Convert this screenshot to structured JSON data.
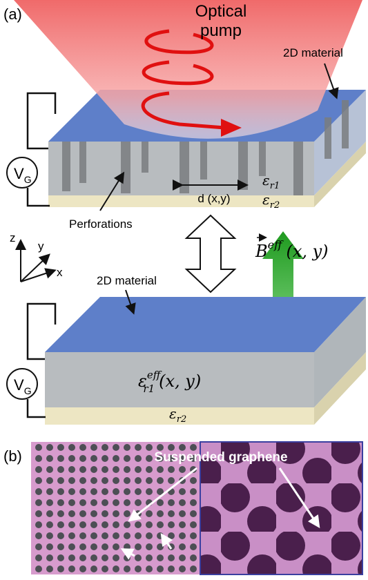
{
  "panel_a": {
    "label": "(a)",
    "optical_pump": [
      "Optical",
      "pump"
    ],
    "top_slab": {
      "material": "2D material",
      "gate": {
        "symbol": "V",
        "sub": "G"
      },
      "eps_r1": {
        "symbol": "ε",
        "sub": "r1"
      },
      "eps_r2": {
        "symbol": "ε",
        "sub": "r2"
      },
      "spacing": "d (x,y)",
      "perforations": "Perforations"
    },
    "axes": {
      "z": "z",
      "y": "y",
      "x": "x"
    },
    "field": {
      "symbol": "B",
      "sup": "eff",
      "args": "(x, y)"
    },
    "bottom_slab": {
      "material": "2D material",
      "gate": {
        "symbol": "V",
        "sub": "G"
      },
      "eps_r1": {
        "symbol": "ε",
        "sub": "r1",
        "sup": "eff",
        "args": "(x, y)"
      },
      "eps_r2": {
        "symbol": "ε",
        "sub": "r2"
      }
    }
  },
  "panel_b": {
    "label": "(b)",
    "caption": "Suspended graphene"
  }
}
